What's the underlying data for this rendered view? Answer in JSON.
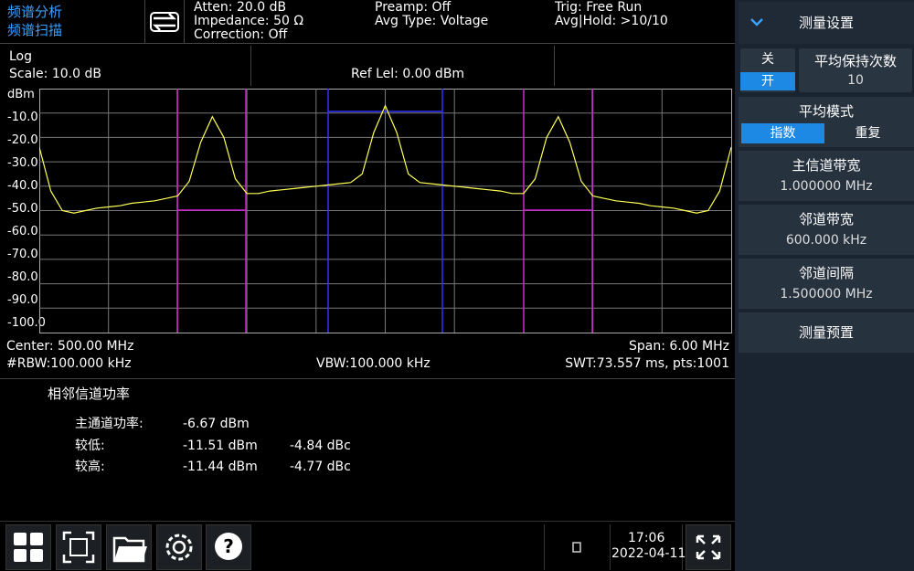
{
  "header": {
    "mode": "频谱分析",
    "submode": "频谱扫描",
    "status": [
      "Atten: 20.0 dB",
      "Impedance: 50 Ω",
      "Correction: Off",
      "Preamp: Off",
      "Avg Type: Voltage",
      "Trig: Free Run",
      "Avg|Hold: >10/10"
    ]
  },
  "info": {
    "scale_type": "Log",
    "scale": "Scale: 10.0 dB",
    "ref_level": "Ref Lel: 0.00 dBm"
  },
  "y_labels": [
    "dBm",
    "-10.0",
    "-20.0",
    "-30.0",
    "-40.0",
    "-50.0",
    "-60.0",
    "-70.0",
    "-80.0",
    "-90.0",
    "-100.0"
  ],
  "trace": {
    "ylim": [
      -100,
      0
    ],
    "color": "#ffff55",
    "values": [
      -24,
      -42,
      -50,
      -51,
      -50,
      -49,
      -48.5,
      -48,
      -47,
      -46.5,
      -46,
      -45,
      -44,
      -38,
      -22,
      -11.5,
      -20,
      -37,
      -43,
      -43,
      -42,
      -41.5,
      -41,
      -40.5,
      -40,
      -39.5,
      -39,
      -38.5,
      -35,
      -18,
      -7,
      -18,
      -35,
      -38.5,
      -39,
      -39.5,
      -40,
      -40.5,
      -41,
      -41.5,
      -42,
      -43,
      -43,
      -37,
      -20,
      -11.5,
      -22,
      -38,
      -44,
      -45,
      -46,
      -46.5,
      -47,
      -48,
      -48.5,
      -49,
      -50,
      -51,
      -50,
      -42,
      -24
    ]
  },
  "footer": {
    "center": "Center: 500.00 MHz",
    "span": "Span: 6.00 MHz",
    "rbw": "#RBW:100.000 kHz",
    "vbw": "VBW:100.000 kHz",
    "swt": "SWT:73.557 ms, pts:1001"
  },
  "results": {
    "title": "相邻信道功率",
    "main": {
      "label": "主通道功率:",
      "power": "-6.67 dBm"
    },
    "lower": {
      "label": "较低:",
      "power": "-11.51 dBm",
      "relative": "-4.84 dBc"
    },
    "upper": {
      "label": "较高:",
      "power": "-11.44 dBm",
      "relative": "-4.77 dBc"
    }
  },
  "taskbar": {
    "time": "17:06",
    "date": "2022-04-11"
  },
  "menu": {
    "title": "测量设置",
    "toggle": {
      "off": "关",
      "on": "开"
    },
    "avg_count": {
      "label": "平均保持次数",
      "value": "10"
    },
    "avg_mode": {
      "label": "平均模式",
      "options": [
        "指数",
        "重复"
      ]
    },
    "main_bw": {
      "label": "主信道带宽",
      "value": "1.000000 MHz"
    },
    "adj_bw": {
      "label": "邻道带宽",
      "value": "600.000 kHz"
    },
    "adj_spacing": {
      "label": "邻道间隔",
      "value": "1.500000 MHz"
    },
    "preset": "测量预置"
  }
}
